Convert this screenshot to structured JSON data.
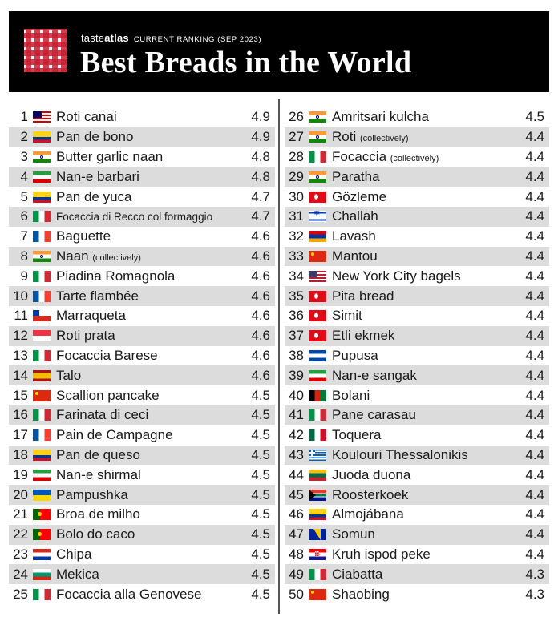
{
  "header": {
    "brand_prefix": "taste",
    "brand_suffix": "atlas",
    "subtitle": "CURRENT RANKING (SEP 2023)",
    "title": "Best Breads in the World"
  },
  "left": [
    {
      "rank": "1",
      "flag": "my",
      "name": "Roti canai",
      "note": "",
      "score": "4.9"
    },
    {
      "rank": "2",
      "flag": "co",
      "name": "Pan de bono",
      "note": "",
      "score": "4.9"
    },
    {
      "rank": "3",
      "flag": "in",
      "name": "Butter garlic naan",
      "note": "",
      "score": "4.8"
    },
    {
      "rank": "4",
      "flag": "ir",
      "name": "Nan-e barbari",
      "note": "",
      "score": "4.8"
    },
    {
      "rank": "5",
      "flag": "co",
      "name": "Pan de yuca",
      "note": "",
      "score": "4.7"
    },
    {
      "rank": "6",
      "flag": "it",
      "name": "Focaccia di Recco col formaggio",
      "note": "",
      "score": "4.7",
      "small": true
    },
    {
      "rank": "7",
      "flag": "fr",
      "name": "Baguette",
      "note": "",
      "score": "4.6"
    },
    {
      "rank": "8",
      "flag": "in",
      "name": "Naan",
      "note": "(collectively)",
      "score": "4.6"
    },
    {
      "rank": "9",
      "flag": "it",
      "name": "Piadina Romagnola",
      "note": "",
      "score": "4.6"
    },
    {
      "rank": "10",
      "flag": "fr",
      "name": "Tarte flambée",
      "note": "",
      "score": "4.6"
    },
    {
      "rank": "11",
      "flag": "cl",
      "name": "Marraqueta",
      "note": "",
      "score": "4.6"
    },
    {
      "rank": "12",
      "flag": "sg",
      "name": "Roti prata",
      "note": "",
      "score": "4.6"
    },
    {
      "rank": "13",
      "flag": "it",
      "name": "Focaccia Barese",
      "note": "",
      "score": "4.6"
    },
    {
      "rank": "14",
      "flag": "es",
      "name": "Talo",
      "note": "",
      "score": "4.6"
    },
    {
      "rank": "15",
      "flag": "cn",
      "name": "Scallion pancake",
      "note": "",
      "score": "4.5"
    },
    {
      "rank": "16",
      "flag": "it",
      "name": "Farinata di ceci",
      "note": "",
      "score": "4.5"
    },
    {
      "rank": "17",
      "flag": "fr",
      "name": "Pain de Campagne",
      "note": "",
      "score": "4.5"
    },
    {
      "rank": "18",
      "flag": "co",
      "name": "Pan de queso",
      "note": "",
      "score": "4.5"
    },
    {
      "rank": "19",
      "flag": "ir",
      "name": "Nan-e shirmal",
      "note": "",
      "score": "4.5"
    },
    {
      "rank": "20",
      "flag": "ua",
      "name": "Pampushka",
      "note": "",
      "score": "4.5"
    },
    {
      "rank": "21",
      "flag": "pt",
      "name": "Broa de milho",
      "note": "",
      "score": "4.5"
    },
    {
      "rank": "22",
      "flag": "pt",
      "name": "Bolo do caco",
      "note": "",
      "score": "4.5"
    },
    {
      "rank": "23",
      "flag": "py",
      "name": "Chipa",
      "note": "",
      "score": "4.5"
    },
    {
      "rank": "24",
      "flag": "bg",
      "name": "Mekica",
      "note": "",
      "score": "4.5"
    },
    {
      "rank": "25",
      "flag": "it",
      "name": "Focaccia alla Genovese",
      "note": "",
      "score": "4.5"
    }
  ],
  "right": [
    {
      "rank": "26",
      "flag": "in",
      "name": "Amritsari kulcha",
      "note": "",
      "score": "4.5"
    },
    {
      "rank": "27",
      "flag": "in",
      "name": "Roti",
      "note": "(collectively)",
      "score": "4.4"
    },
    {
      "rank": "28",
      "flag": "it",
      "name": "Focaccia",
      "note": "(collectively)",
      "score": "4.4"
    },
    {
      "rank": "29",
      "flag": "in",
      "name": "Paratha",
      "note": "",
      "score": "4.4"
    },
    {
      "rank": "30",
      "flag": "tr",
      "name": "Gözleme",
      "note": "",
      "score": "4.4"
    },
    {
      "rank": "31",
      "flag": "il",
      "name": "Challah",
      "note": "",
      "score": "4.4"
    },
    {
      "rank": "32",
      "flag": "am",
      "name": "Lavash",
      "note": "",
      "score": "4.4"
    },
    {
      "rank": "33",
      "flag": "cn",
      "name": "Mantou",
      "note": "",
      "score": "4.4"
    },
    {
      "rank": "34",
      "flag": "us",
      "name": "New York City bagels",
      "note": "",
      "score": "4.4"
    },
    {
      "rank": "35",
      "flag": "tr",
      "name": "Pita bread",
      "note": "",
      "score": "4.4"
    },
    {
      "rank": "36",
      "flag": "tr",
      "name": "Simit",
      "note": "",
      "score": "4.4"
    },
    {
      "rank": "37",
      "flag": "tr",
      "name": "Etli ekmek",
      "note": "",
      "score": "4.4"
    },
    {
      "rank": "38",
      "flag": "sv",
      "name": "Pupusa",
      "note": "",
      "score": "4.4"
    },
    {
      "rank": "39",
      "flag": "ir",
      "name": "Nan-e sangak",
      "note": "",
      "score": "4.4"
    },
    {
      "rank": "40",
      "flag": "af",
      "name": "Bolani",
      "note": "",
      "score": "4.4"
    },
    {
      "rank": "41",
      "flag": "it",
      "name": "Pane carasau",
      "note": "",
      "score": "4.4"
    },
    {
      "rank": "42",
      "flag": "mx",
      "name": "Toquera",
      "note": "",
      "score": "4.4"
    },
    {
      "rank": "43",
      "flag": "gr",
      "name": "Koulouri Thessalonikis",
      "note": "",
      "score": "4.4"
    },
    {
      "rank": "44",
      "flag": "lt",
      "name": "Juoda duona",
      "note": "",
      "score": "4.4"
    },
    {
      "rank": "45",
      "flag": "za",
      "name": "Roosterkoek",
      "note": "",
      "score": "4.4"
    },
    {
      "rank": "46",
      "flag": "co",
      "name": "Almojábana",
      "note": "",
      "score": "4.4"
    },
    {
      "rank": "47",
      "flag": "ba",
      "name": "Somun",
      "note": "",
      "score": "4.4"
    },
    {
      "rank": "48",
      "flag": "hr",
      "name": "Kruh ispod peke",
      "note": "",
      "score": "4.4"
    },
    {
      "rank": "49",
      "flag": "it",
      "name": "Ciabatta",
      "note": "",
      "score": "4.3"
    },
    {
      "rank": "50",
      "flag": "cn",
      "name": "Shaobing",
      "note": "",
      "score": "4.3"
    }
  ]
}
